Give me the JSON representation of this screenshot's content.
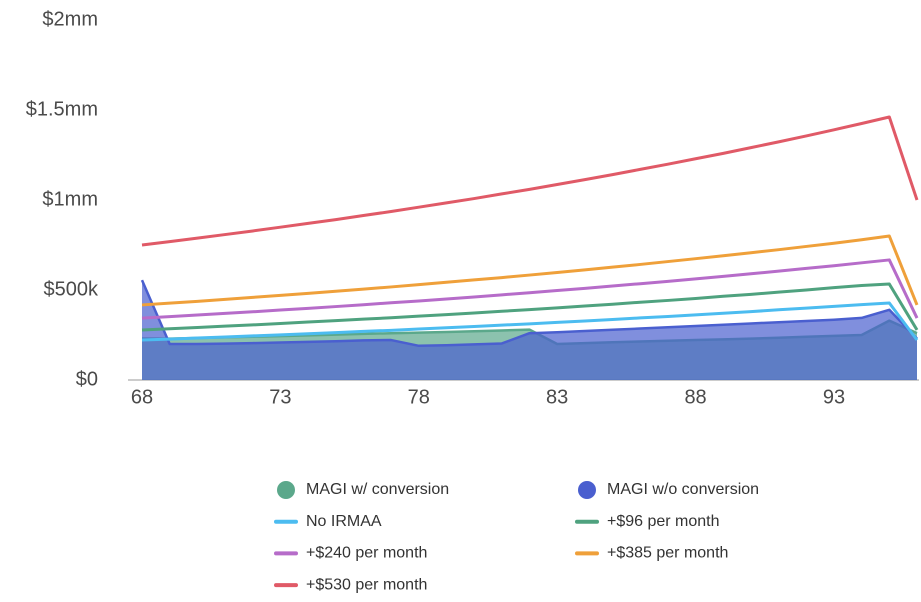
{
  "chart_data": {
    "type": "line",
    "x": [
      68,
      69,
      70,
      71,
      72,
      73,
      74,
      75,
      76,
      77,
      78,
      79,
      80,
      81,
      82,
      83,
      84,
      85,
      86,
      87,
      88,
      89,
      90,
      91,
      92,
      93,
      94,
      95,
      96
    ],
    "xlim": [
      68,
      96
    ],
    "xticks": [
      68,
      73,
      78,
      83,
      88,
      93
    ],
    "ylim": [
      0,
      2000000
    ],
    "yticks": [
      {
        "value": 0,
        "label": "$0"
      },
      {
        "value": 500000,
        "label": "$500k"
      },
      {
        "value": 1000000,
        "label": "$1mm"
      },
      {
        "value": 1500000,
        "label": "$1.5mm"
      },
      {
        "value": 2000000,
        "label": "$2mm"
      }
    ],
    "grid": false,
    "legend": "bottom",
    "series": [
      {
        "name": "MAGI w/ conversion",
        "type": "area",
        "color": "#5ba88b",
        "values": [
          230000,
          230000,
          233000,
          237000,
          240000,
          244000,
          248000,
          252000,
          256000,
          260000,
          263000,
          267000,
          271000,
          275000,
          280000,
          200000,
          205000,
          210000,
          214000,
          218000,
          222000,
          226000,
          230000,
          235000,
          240000,
          245000,
          250000,
          330000,
          260000
        ]
      },
      {
        "name": "MAGI w/o conversion",
        "type": "area",
        "color": "#4a5fcf",
        "values": [
          555000,
          200000,
          200000,
          202000,
          205000,
          208000,
          212000,
          215000,
          220000,
          222000,
          190000,
          193000,
          198000,
          203000,
          260000,
          265000,
          272000,
          279000,
          286000,
          293000,
          300000,
          307000,
          314000,
          321000,
          328000,
          335000,
          345000,
          390000,
          230000
        ]
      },
      {
        "name": "No IRMAA",
        "type": "line",
        "color": "#4cbcf0",
        "values": [
          222000,
          227000,
          233000,
          239000,
          245000,
          251000,
          257000,
          263000,
          270000,
          276000,
          283000,
          290000,
          297000,
          305000,
          312000,
          320000,
          328000,
          336000,
          345000,
          353000,
          362000,
          371000,
          380000,
          390000,
          399000,
          409000,
          419000,
          428000,
          222000
        ]
      },
      {
        "name": "+$96 per month",
        "type": "line",
        "color": "#4fa27f",
        "values": [
          278000,
          285000,
          292000,
          299000,
          306000,
          314000,
          322000,
          330000,
          338000,
          346000,
          355000,
          363000,
          372000,
          382000,
          391000,
          401000,
          411000,
          421000,
          432000,
          442000,
          453000,
          465000,
          476000,
          488000,
          500000,
          513000,
          525000,
          533000,
          278000
        ]
      },
      {
        "name": "+$240 per month",
        "type": "line",
        "color": "#b66cc9",
        "values": [
          344000,
          352000,
          361000,
          370000,
          379000,
          389000,
          398000,
          408000,
          418000,
          429000,
          439000,
          450000,
          461000,
          473000,
          485000,
          497000,
          509000,
          522000,
          535000,
          548000,
          562000,
          576000,
          590000,
          605000,
          620000,
          635000,
          651000,
          667000,
          344000
        ]
      },
      {
        "name": "+$385 per month",
        "type": "line",
        "color": "#efa03a",
        "values": [
          417000,
          427000,
          437000,
          448000,
          459000,
          470000,
          481000,
          493000,
          505000,
          517000,
          530000,
          543000,
          556000,
          569000,
          583000,
          597000,
          612000,
          627000,
          642000,
          658000,
          674000,
          690000,
          707000,
          724000,
          742000,
          760000,
          779000,
          800000,
          417000
        ]
      },
      {
        "name": "+$530 per month",
        "type": "line",
        "color": "#e05a67",
        "values": [
          750000,
          769000,
          788000,
          808000,
          828000,
          849000,
          870000,
          891000,
          914000,
          936000,
          960000,
          984000,
          1008000,
          1034000,
          1059000,
          1086000,
          1113000,
          1141000,
          1170000,
          1199000,
          1229000,
          1259000,
          1291000,
          1323000,
          1356000,
          1390000,
          1425000,
          1461000,
          1000000
        ]
      }
    ]
  }
}
